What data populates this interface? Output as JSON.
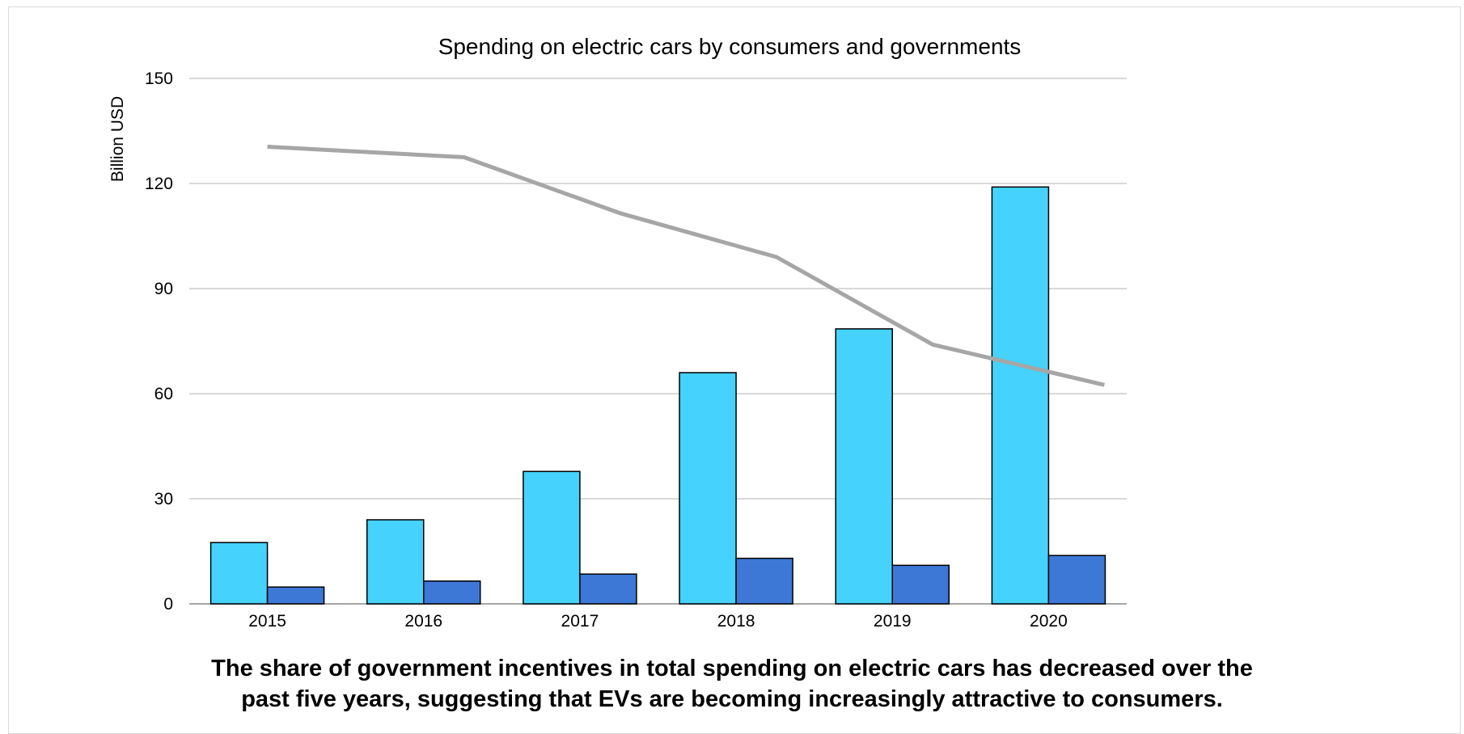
{
  "chart_data": {
    "type": "bar",
    "title": "Spending on electric cars by consumers and governments",
    "xlabel": "",
    "ylabel": "Billion USD",
    "ylim": [
      0,
      150
    ],
    "yticks": [
      0,
      30,
      60,
      90,
      120,
      150
    ],
    "categories": [
      "2015",
      "2016",
      "2017",
      "2018",
      "2019",
      "2020"
    ],
    "series": [
      {
        "type": "bar",
        "color": "#45d2fc",
        "values": [
          17.5,
          24,
          37.8,
          66,
          78.5,
          119
        ]
      },
      {
        "type": "bar",
        "color": "#3d78d6",
        "values": [
          4.8,
          6.5,
          8.5,
          13,
          11,
          13.8
        ]
      },
      {
        "type": "line",
        "color": "#a6a6a6",
        "values": [
          130.5,
          127.5,
          111.5,
          99,
          74,
          62.5
        ]
      }
    ],
    "grid": true,
    "legend": "none"
  },
  "caption": {
    "line1": "The share of government incentives in total spending on electric cars has decreased over the",
    "line2": "past five years, suggesting that EVs are becoming increasingly attractive to consumers."
  }
}
